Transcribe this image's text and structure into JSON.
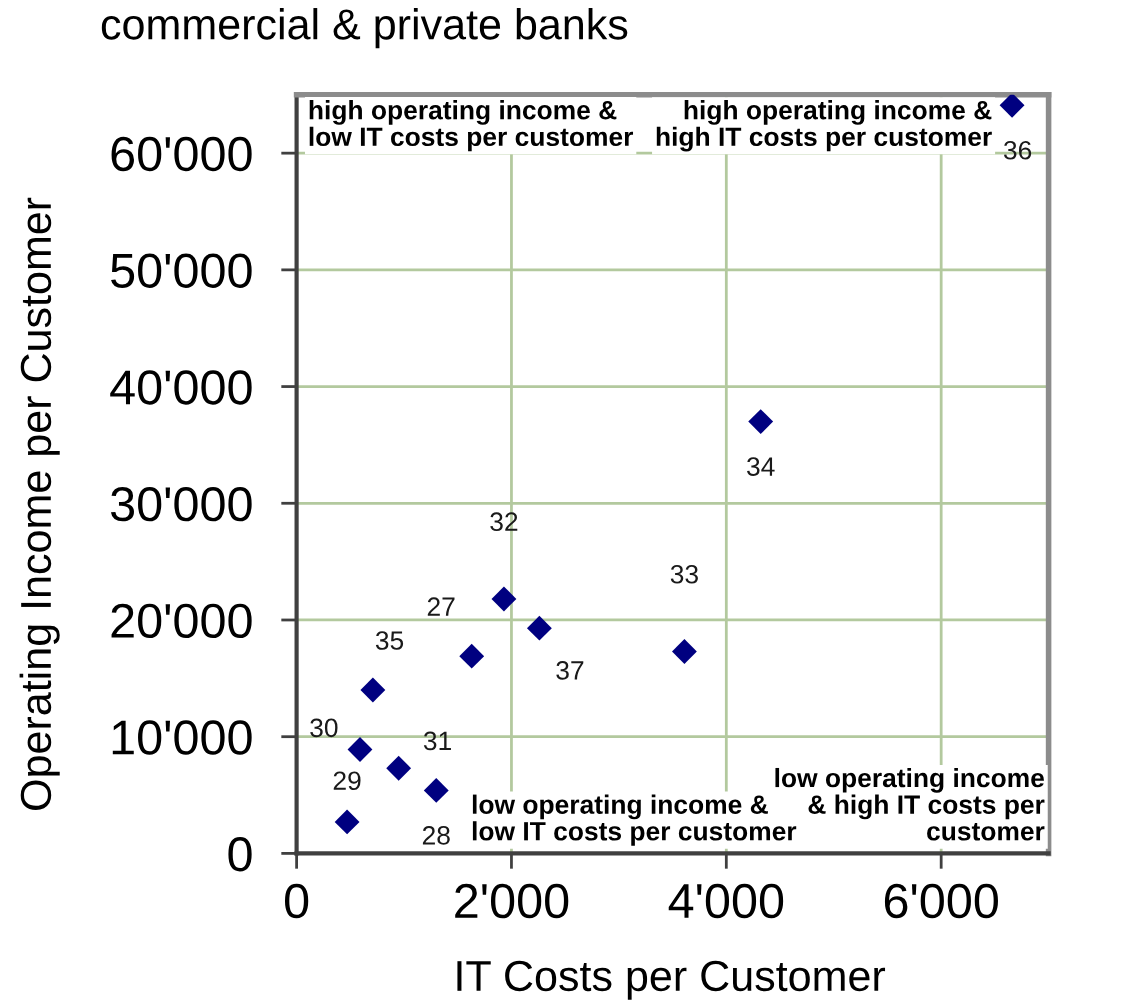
{
  "chart_data": {
    "type": "scatter",
    "title": "commercial & private banks",
    "xlabel": "IT Costs per Customer",
    "ylabel": "Operating Income per Customer",
    "x": [
      1630,
      1300,
      470,
      590,
      950,
      1930,
      3610,
      4320,
      710,
      6660,
      2260
    ],
    "series": [
      {
        "color": "#000080",
        "values": [
          16900,
          5400,
          2700,
          8900,
          7300,
          21800,
          17300,
          37000,
          14000,
          64100,
          19300
        ]
      }
    ],
    "marker": "diamond",
    "grid": true,
    "xlim": [
      0,
      7000
    ],
    "xticks": [
      0,
      {
        "value": 2000,
        "label": "2'000"
      },
      {
        "value": 4000,
        "label": "4'000"
      },
      {
        "value": 6000,
        "label": "6'000"
      }
    ],
    "ylim": [
      0,
      65000
    ],
    "yticks": [
      0,
      {
        "value": 10000,
        "label": "10'000"
      },
      {
        "value": 20000,
        "label": "20'000"
      },
      {
        "value": 30000,
        "label": "30'000"
      },
      {
        "value": 40000,
        "label": "40'000"
      },
      {
        "value": 50000,
        "label": "50'000"
      },
      {
        "value": 60000,
        "label": "60'000"
      }
    ],
    "annotations": [
      "high operating income &\nlow IT costs per customer",
      "high operating income &\nhigh IT costs per customer",
      "low operating income &\nlow IT costs per customer",
      "low operating income\n& high IT costs per\ncustomer",
      {
        "text": "27",
        "x": 1630,
        "y": 16900
      },
      {
        "text": "28",
        "x": 1300,
        "y": 5400
      },
      {
        "text": "29",
        "x": 470,
        "y": 2700
      },
      {
        "text": "30",
        "x": 590,
        "y": 8900
      },
      {
        "text": "31",
        "x": 950,
        "y": 7300
      },
      {
        "text": "32",
        "x": 1930,
        "y": 21800
      },
      {
        "text": "33",
        "x": 3610,
        "y": 17300
      },
      {
        "text": "34",
        "x": 4320,
        "y": 37000
      },
      {
        "text": "35",
        "x": 710,
        "y": 14000
      },
      {
        "text": "36",
        "x": 6660,
        "y": 64100
      },
      {
        "text": "37",
        "x": 2260,
        "y": 19300
      }
    ]
  }
}
